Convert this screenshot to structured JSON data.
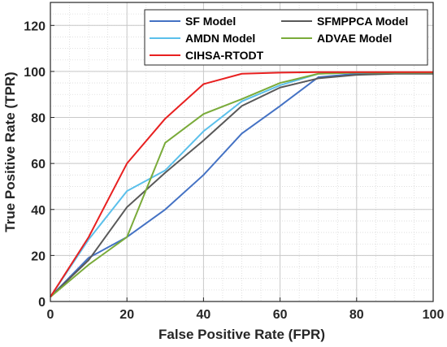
{
  "chart_data": {
    "type": "line",
    "title": "",
    "xlabel": "False Positive Rate (FPR)",
    "ylabel": "True Positive Rate (TPR)",
    "xlim": [
      0,
      100
    ],
    "ylim": [
      0,
      130
    ],
    "xticks": [
      "0",
      "20",
      "40",
      "60",
      "80",
      "100"
    ],
    "yticks": [
      "0",
      "20",
      "40",
      "60",
      "80",
      "100",
      "120"
    ],
    "grid": true,
    "minor_grid": true,
    "legend_position": "top-right",
    "x": [
      0,
      10,
      20,
      30,
      40,
      50,
      60,
      70,
      80,
      90,
      100
    ],
    "series": [
      {
        "name": "SF Model",
        "color": "#4472c4",
        "values": [
          2,
          19,
          28,
          40,
          55,
          73,
          85,
          97.5,
          99,
          99.5,
          99.5
        ]
      },
      {
        "name": "SFMPPCA Model",
        "color": "#595959",
        "values": [
          2,
          18,
          41,
          56,
          70,
          85,
          93,
          97,
          98.5,
          99,
          99
        ]
      },
      {
        "name": "AMDN Model",
        "color": "#5bc0eb",
        "values": [
          2,
          27,
          48,
          57,
          74,
          87,
          94,
          99,
          99.5,
          99.5,
          99.5
        ]
      },
      {
        "name": "ADVAE Model",
        "color": "#7aab3a",
        "values": [
          2,
          16,
          28,
          69,
          81.5,
          88,
          95,
          99,
          99.5,
          99.5,
          99.5
        ]
      },
      {
        "name": "CIHSA-RTODT",
        "color": "#e82020",
        "values": [
          2,
          28,
          60,
          79.5,
          94.5,
          99,
          99.5,
          99.7,
          99.7,
          99.7,
          99.7
        ]
      }
    ]
  }
}
